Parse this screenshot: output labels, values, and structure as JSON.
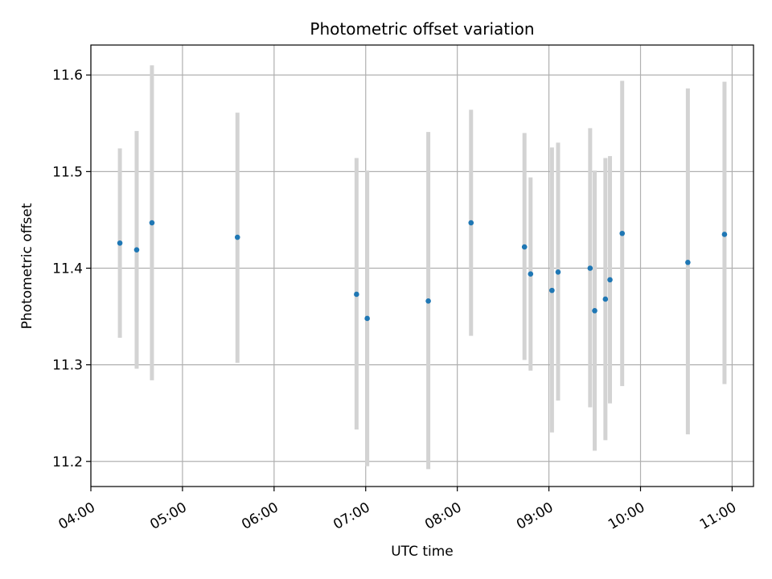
{
  "chart_data": {
    "type": "scatter",
    "title": "Photometric offset variation",
    "xlabel": "UTC time",
    "ylabel": "Photometric offset",
    "xlim": [
      "04:00",
      "11:14"
    ],
    "ylim": [
      11.174,
      11.631
    ],
    "x_ticks": [
      "04:00",
      "05:00",
      "06:00",
      "07:00",
      "08:00",
      "09:00",
      "10:00",
      "11:00"
    ],
    "y_ticks": [
      11.2,
      11.3,
      11.4,
      11.5,
      11.6
    ],
    "y_tick_labels": [
      "11.2",
      "11.3",
      "11.4",
      "11.5",
      "11.6"
    ],
    "grid": true,
    "series": [
      {
        "marker_color": "#1f77b4",
        "errorbar_color": "#d3d3d3",
        "points": [
          {
            "x": "04:19",
            "y": 11.426,
            "ylow": 11.328,
            "yhigh": 11.524
          },
          {
            "x": "04:30",
            "y": 11.419,
            "ylow": 11.296,
            "yhigh": 11.542
          },
          {
            "x": "04:40",
            "y": 11.447,
            "ylow": 11.284,
            "yhigh": 11.61
          },
          {
            "x": "05:36",
            "y": 11.432,
            "ylow": 11.302,
            "yhigh": 11.561
          },
          {
            "x": "06:54",
            "y": 11.373,
            "ylow": 11.233,
            "yhigh": 11.514
          },
          {
            "x": "07:01",
            "y": 11.348,
            "ylow": 11.195,
            "yhigh": 11.501
          },
          {
            "x": "07:41",
            "y": 11.366,
            "ylow": 11.192,
            "yhigh": 11.541
          },
          {
            "x": "08:09",
            "y": 11.447,
            "ylow": 11.33,
            "yhigh": 11.564
          },
          {
            "x": "08:44",
            "y": 11.422,
            "ylow": 11.305,
            "yhigh": 11.54
          },
          {
            "x": "08:48",
            "y": 11.394,
            "ylow": 11.294,
            "yhigh": 11.494
          },
          {
            "x": "09:02",
            "y": 11.377,
            "ylow": 11.23,
            "yhigh": 11.525
          },
          {
            "x": "09:06",
            "y": 11.396,
            "ylow": 11.263,
            "yhigh": 11.53
          },
          {
            "x": "09:27",
            "y": 11.4,
            "ylow": 11.256,
            "yhigh": 11.545
          },
          {
            "x": "09:30",
            "y": 11.356,
            "ylow": 11.211,
            "yhigh": 11.501
          },
          {
            "x": "09:37",
            "y": 11.368,
            "ylow": 11.222,
            "yhigh": 11.514
          },
          {
            "x": "09:40",
            "y": 11.388,
            "ylow": 11.26,
            "yhigh": 11.516
          },
          {
            "x": "09:48",
            "y": 11.436,
            "ylow": 11.278,
            "yhigh": 11.594
          },
          {
            "x": "10:31",
            "y": 11.406,
            "ylow": 11.228,
            "yhigh": 11.586
          },
          {
            "x": "10:55",
            "y": 11.435,
            "ylow": 11.28,
            "yhigh": 11.593
          }
        ]
      }
    ]
  }
}
